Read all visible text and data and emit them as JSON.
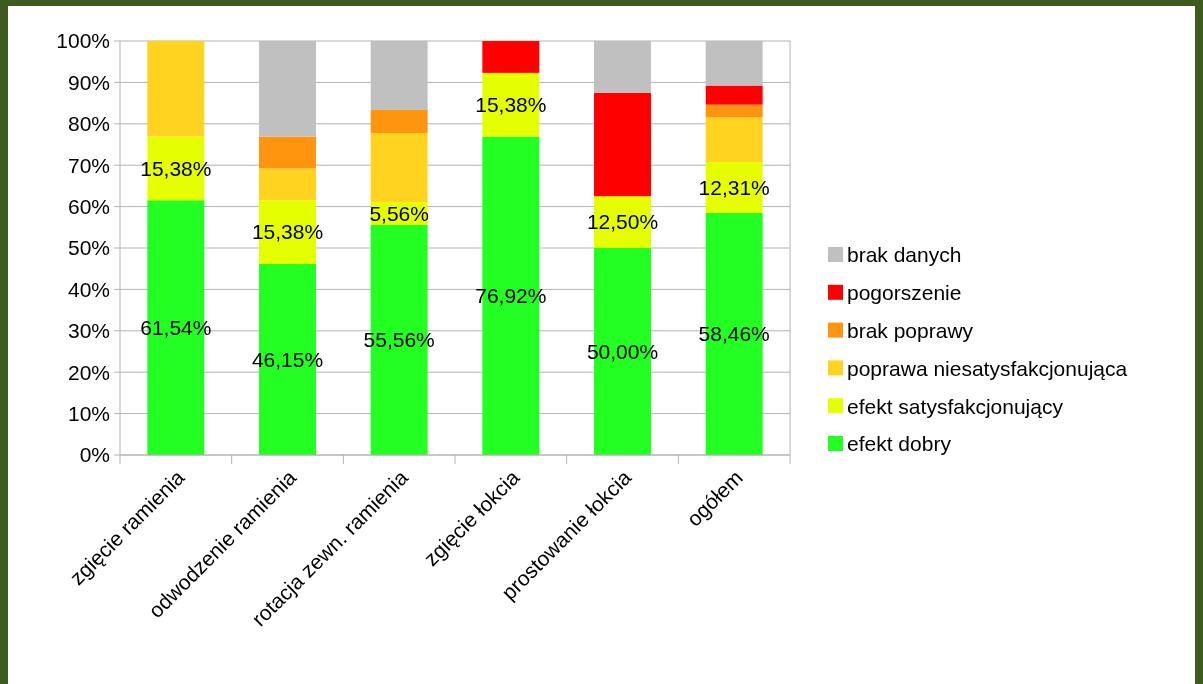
{
  "chart_data": {
    "type": "bar",
    "stacked": true,
    "categories": [
      "zgięcie ramienia",
      "odwodzenie ramienia",
      "rotacja zewn. ramienia",
      "zgięcie łokcia",
      "prostowanie łokcia",
      "ogółem"
    ],
    "series": [
      {
        "name": "efekt dobry",
        "color": "#23ff23",
        "values": [
          61.54,
          46.15,
          55.56,
          76.92,
          50.0,
          58.46
        ],
        "value_labels": [
          "61,54%",
          "46,15%",
          "55,56%",
          "76,92%",
          "50,00%",
          "58,46%"
        ]
      },
      {
        "name": "efekt satysfakcjonujący",
        "color": "#e6ff00",
        "values": [
          15.38,
          15.38,
          5.56,
          15.38,
          12.5,
          12.31
        ],
        "value_labels": [
          "15,38%",
          "15,38%",
          "5,56%",
          "15,38%",
          "12,50%",
          "12,31%"
        ]
      },
      {
        "name": "poprawa niesatysfakcjonująca",
        "color": "#ffd320",
        "values": [
          23.08,
          7.69,
          16.67,
          0,
          0,
          10.77
        ]
      },
      {
        "name": "brak poprawy",
        "color": "#ff950e",
        "values": [
          0,
          7.69,
          5.56,
          0,
          0,
          3.08
        ]
      },
      {
        "name": "pogorszenie",
        "color": "#ff0000",
        "values": [
          0,
          0,
          0,
          7.69,
          25.0,
          4.62
        ]
      },
      {
        "name": "brak danych",
        "color": "#c0c0c0",
        "values": [
          0,
          23.08,
          16.67,
          0,
          12.5,
          10.77
        ]
      }
    ],
    "ylim": [
      0,
      100
    ],
    "yticks": [
      {
        "value": 0,
        "label": "0%"
      },
      {
        "value": 10,
        "label": "10%"
      },
      {
        "value": 20,
        "label": "20%"
      },
      {
        "value": 30,
        "label": "30%"
      },
      {
        "value": 40,
        "label": "40%"
      },
      {
        "value": 50,
        "label": "50%"
      },
      {
        "value": 60,
        "label": "60%"
      },
      {
        "value": 70,
        "label": "70%"
      },
      {
        "value": 80,
        "label": "80%"
      },
      {
        "value": 90,
        "label": "90%"
      },
      {
        "value": 100,
        "label": "100%"
      }
    ],
    "grid": "y",
    "legend": "right"
  }
}
